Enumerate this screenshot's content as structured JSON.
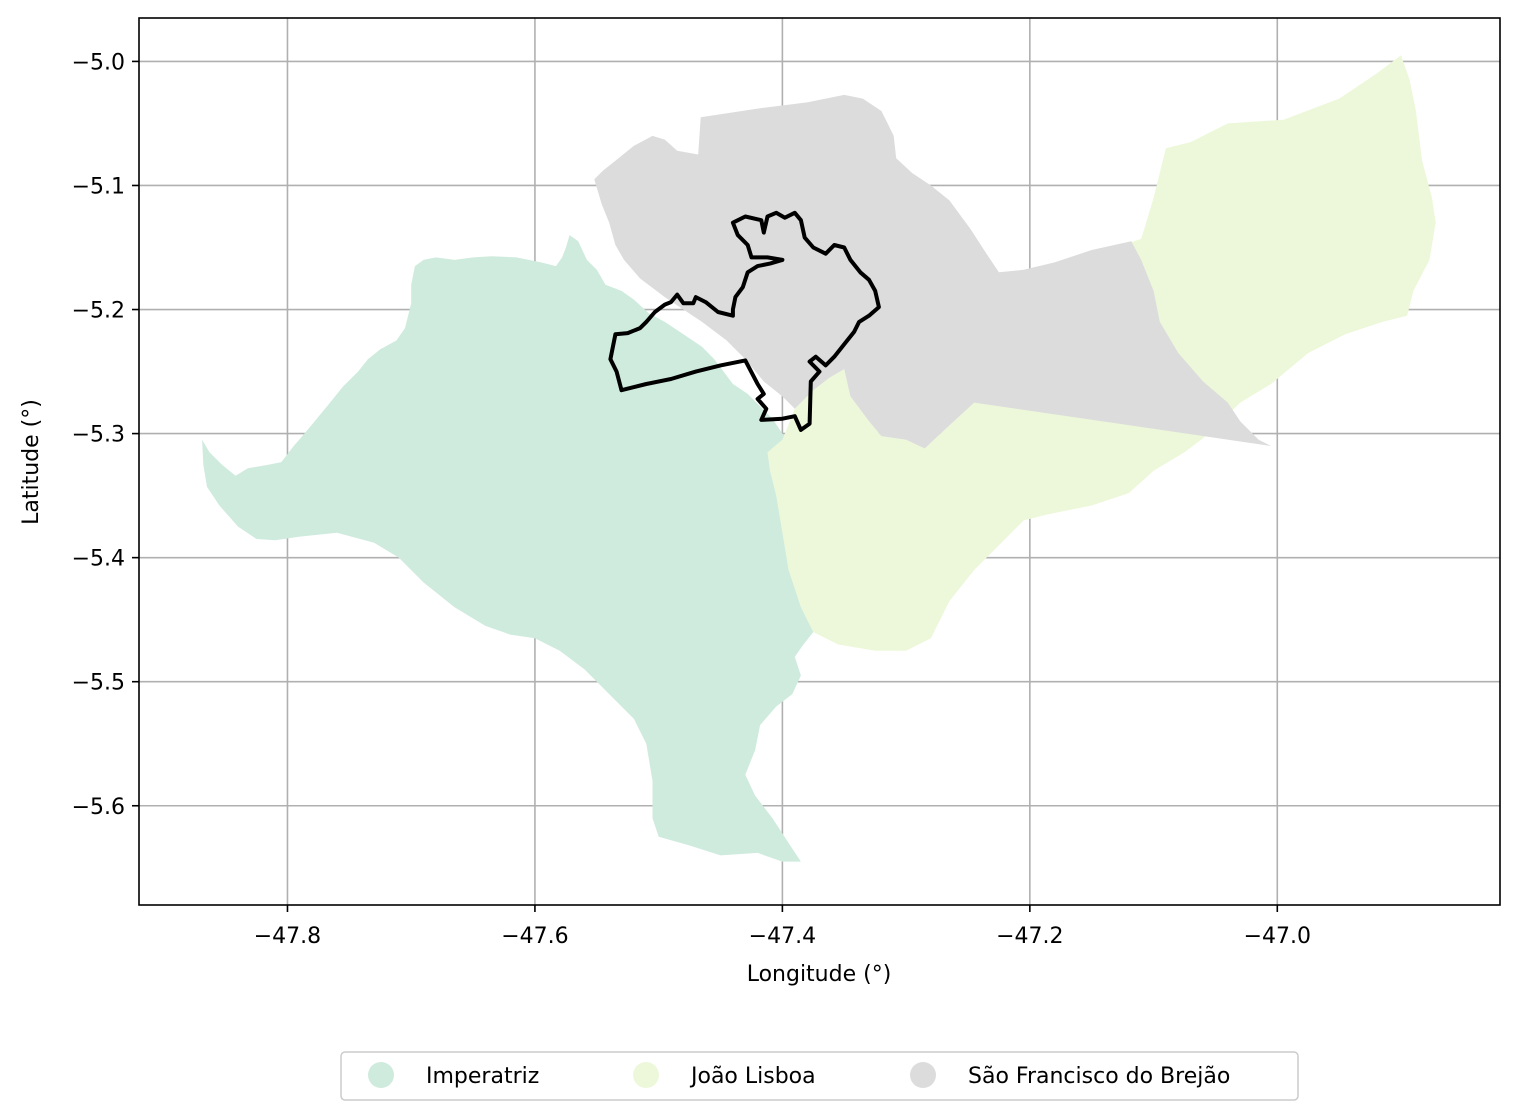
{
  "chart_data": {
    "type": "choropleth-map",
    "xlabel": "Longitude (°)",
    "ylabel": "Latitude (°)",
    "xlim": [
      -47.92,
      -46.82
    ],
    "ylim": [
      -5.68,
      -4.965
    ],
    "grid": true,
    "x_ticks": [
      -47.8,
      -47.6,
      -47.4,
      -47.2,
      -47.0
    ],
    "y_ticks": [
      -5.0,
      -5.1,
      -5.2,
      -5.3,
      -5.4,
      -5.5,
      -5.6
    ],
    "x_tick_labels": [
      "−47.8",
      "−47.6",
      "−47.4",
      "−47.2",
      "−47.0"
    ],
    "y_tick_labels": [
      "−5.0",
      "−5.1",
      "−5.2",
      "−5.3",
      "−5.4",
      "−5.5",
      "−5.6"
    ],
    "legend_position": "bottom-center",
    "regions": [
      {
        "name": "Imperatriz",
        "color": "#cfebde",
        "polygon": [
          [
            -47.869,
            -5.305
          ],
          [
            -47.863,
            -5.315
          ],
          [
            -47.853,
            -5.325
          ],
          [
            -47.842,
            -5.334
          ],
          [
            -47.832,
            -5.328
          ],
          [
            -47.815,
            -5.325
          ],
          [
            -47.805,
            -5.323
          ],
          [
            -47.795,
            -5.31
          ],
          [
            -47.788,
            -5.302
          ],
          [
            -47.778,
            -5.29
          ],
          [
            -47.768,
            -5.278
          ],
          [
            -47.755,
            -5.262
          ],
          [
            -47.743,
            -5.25
          ],
          [
            -47.735,
            -5.24
          ],
          [
            -47.725,
            -5.232
          ],
          [
            -47.712,
            -5.225
          ],
          [
            -47.705,
            -5.215
          ],
          [
            -47.7,
            -5.195
          ],
          [
            -47.7,
            -5.18
          ],
          [
            -47.697,
            -5.165
          ],
          [
            -47.69,
            -5.16
          ],
          [
            -47.68,
            -5.158
          ],
          [
            -47.665,
            -5.16
          ],
          [
            -47.65,
            -5.158
          ],
          [
            -47.635,
            -5.157
          ],
          [
            -47.615,
            -5.158
          ],
          [
            -47.595,
            -5.162
          ],
          [
            -47.583,
            -5.165
          ],
          [
            -47.578,
            -5.158
          ],
          [
            -47.575,
            -5.15
          ],
          [
            -47.572,
            -5.14
          ],
          [
            -47.565,
            -5.145
          ],
          [
            -47.558,
            -5.16
          ],
          [
            -47.55,
            -5.168
          ],
          [
            -47.543,
            -5.18
          ],
          [
            -47.53,
            -5.185
          ],
          [
            -47.52,
            -5.192
          ],
          [
            -47.508,
            -5.203
          ],
          [
            -47.495,
            -5.21
          ],
          [
            -47.48,
            -5.22
          ],
          [
            -47.465,
            -5.23
          ],
          [
            -47.455,
            -5.24
          ],
          [
            -47.44,
            -5.26
          ],
          [
            -47.428,
            -5.268
          ],
          [
            -47.418,
            -5.278
          ],
          [
            -47.408,
            -5.288
          ],
          [
            -47.4,
            -5.3
          ],
          [
            -47.388,
            -5.31
          ],
          [
            -47.38,
            -5.325
          ],
          [
            -47.36,
            -5.345
          ],
          [
            -47.34,
            -5.36
          ],
          [
            -47.332,
            -5.368
          ],
          [
            -47.34,
            -5.38
          ],
          [
            -47.345,
            -5.395
          ],
          [
            -47.355,
            -5.415
          ],
          [
            -47.365,
            -5.44
          ],
          [
            -47.375,
            -5.46
          ],
          [
            -47.383,
            -5.47
          ],
          [
            -47.39,
            -5.48
          ],
          [
            -47.385,
            -5.495
          ],
          [
            -47.392,
            -5.51
          ],
          [
            -47.405,
            -5.52
          ],
          [
            -47.418,
            -5.535
          ],
          [
            -47.422,
            -5.555
          ],
          [
            -47.43,
            -5.575
          ],
          [
            -47.422,
            -5.592
          ],
          [
            -47.408,
            -5.61
          ],
          [
            -47.395,
            -5.63
          ],
          [
            -47.385,
            -5.645
          ],
          [
            -47.4,
            -5.645
          ],
          [
            -47.42,
            -5.638
          ],
          [
            -47.45,
            -5.64
          ],
          [
            -47.475,
            -5.632
          ],
          [
            -47.5,
            -5.625
          ],
          [
            -47.505,
            -5.61
          ],
          [
            -47.505,
            -5.58
          ],
          [
            -47.51,
            -5.55
          ],
          [
            -47.52,
            -5.53
          ],
          [
            -47.54,
            -5.51
          ],
          [
            -47.56,
            -5.49
          ],
          [
            -47.58,
            -5.475
          ],
          [
            -47.6,
            -5.465
          ],
          [
            -47.62,
            -5.462
          ],
          [
            -47.64,
            -5.455
          ],
          [
            -47.665,
            -5.44
          ],
          [
            -47.69,
            -5.42
          ],
          [
            -47.71,
            -5.4
          ],
          [
            -47.73,
            -5.388
          ],
          [
            -47.76,
            -5.38
          ],
          [
            -47.79,
            -5.383
          ],
          [
            -47.81,
            -5.386
          ],
          [
            -47.825,
            -5.385
          ],
          [
            -47.84,
            -5.375
          ],
          [
            -47.855,
            -5.358
          ],
          [
            -47.865,
            -5.343
          ],
          [
            -47.868,
            -5.325
          ]
        ]
      },
      {
        "name": "João Lisboa",
        "color": "#edf8da",
        "polygon": [
          [
            -47.412,
            -5.315
          ],
          [
            -47.4,
            -5.305
          ],
          [
            -47.39,
            -5.28
          ],
          [
            -47.375,
            -5.265
          ],
          [
            -47.362,
            -5.255
          ],
          [
            -47.35,
            -5.248
          ],
          [
            -47.345,
            -5.27
          ],
          [
            -47.33,
            -5.29
          ],
          [
            -47.32,
            -5.302
          ],
          [
            -47.3,
            -5.305
          ],
          [
            -47.285,
            -5.312
          ],
          [
            -47.27,
            -5.298
          ],
          [
            -47.245,
            -5.275
          ],
          [
            -47.22,
            -5.24
          ],
          [
            -47.19,
            -5.2
          ],
          [
            -47.16,
            -5.172
          ],
          [
            -47.13,
            -5.15
          ],
          [
            -47.11,
            -5.143
          ],
          [
            -47.1,
            -5.11
          ],
          [
            -47.09,
            -5.07
          ],
          [
            -47.07,
            -5.065
          ],
          [
            -47.04,
            -5.05
          ],
          [
            -46.995,
            -5.047
          ],
          [
            -46.95,
            -5.03
          ],
          [
            -46.92,
            -5.01
          ],
          [
            -46.9,
            -4.995
          ],
          [
            -46.893,
            -5.015
          ],
          [
            -46.888,
            -5.04
          ],
          [
            -46.883,
            -5.08
          ],
          [
            -46.875,
            -5.11
          ],
          [
            -46.872,
            -5.13
          ],
          [
            -46.877,
            -5.16
          ],
          [
            -46.89,
            -5.185
          ],
          [
            -46.895,
            -5.205
          ],
          [
            -46.915,
            -5.21
          ],
          [
            -46.945,
            -5.22
          ],
          [
            -46.975,
            -5.235
          ],
          [
            -47.005,
            -5.26
          ],
          [
            -47.03,
            -5.275
          ],
          [
            -47.055,
            -5.3
          ],
          [
            -47.075,
            -5.315
          ],
          [
            -47.1,
            -5.33
          ],
          [
            -47.12,
            -5.348
          ],
          [
            -47.15,
            -5.358
          ],
          [
            -47.185,
            -5.365
          ],
          [
            -47.205,
            -5.37
          ],
          [
            -47.225,
            -5.39
          ],
          [
            -47.245,
            -5.41
          ],
          [
            -47.265,
            -5.435
          ],
          [
            -47.28,
            -5.465
          ],
          [
            -47.3,
            -5.475
          ],
          [
            -47.325,
            -5.475
          ],
          [
            -47.355,
            -5.47
          ],
          [
            -47.375,
            -5.46
          ],
          [
            -47.385,
            -5.44
          ],
          [
            -47.395,
            -5.41
          ],
          [
            -47.4,
            -5.38
          ],
          [
            -47.405,
            -5.35
          ],
          [
            -47.41,
            -5.33
          ]
        ]
      },
      {
        "name": "São Francisco do Brejão",
        "color": "#dcdcdc",
        "polygon": [
          [
            -47.552,
            -5.095
          ],
          [
            -47.545,
            -5.088
          ],
          [
            -47.535,
            -5.08
          ],
          [
            -47.52,
            -5.068
          ],
          [
            -47.505,
            -5.06
          ],
          [
            -47.495,
            -5.063
          ],
          [
            -47.485,
            -5.072
          ],
          [
            -47.468,
            -5.075
          ],
          [
            -47.466,
            -5.045
          ],
          [
            -47.42,
            -5.038
          ],
          [
            -47.38,
            -5.033
          ],
          [
            -47.35,
            -5.027
          ],
          [
            -47.335,
            -5.03
          ],
          [
            -47.32,
            -5.04
          ],
          [
            -47.315,
            -5.05
          ],
          [
            -47.31,
            -5.06
          ],
          [
            -47.308,
            -5.078
          ],
          [
            -47.295,
            -5.09
          ],
          [
            -47.28,
            -5.1
          ],
          [
            -47.265,
            -5.112
          ],
          [
            -47.248,
            -5.135
          ],
          [
            -47.235,
            -5.155
          ],
          [
            -47.225,
            -5.17
          ],
          [
            -47.205,
            -5.168
          ],
          [
            -47.18,
            -5.162
          ],
          [
            -47.15,
            -5.152
          ],
          [
            -47.118,
            -5.145
          ],
          [
            -47.11,
            -5.16
          ],
          [
            -47.1,
            -5.185
          ],
          [
            -47.095,
            -5.21
          ],
          [
            -47.08,
            -5.235
          ],
          [
            -47.06,
            -5.258
          ],
          [
            -47.04,
            -5.275
          ],
          [
            -47.03,
            -5.29
          ],
          [
            -47.015,
            -5.305
          ],
          [
            -47.005,
            -5.31
          ],
          [
            -47.245,
            -5.275
          ],
          [
            -47.27,
            -5.298
          ],
          [
            -47.285,
            -5.312
          ],
          [
            -47.3,
            -5.305
          ],
          [
            -47.32,
            -5.302
          ],
          [
            -47.33,
            -5.29
          ],
          [
            -47.345,
            -5.27
          ],
          [
            -47.35,
            -5.248
          ],
          [
            -47.362,
            -5.255
          ],
          [
            -47.375,
            -5.265
          ],
          [
            -47.39,
            -5.28
          ],
          [
            -47.4,
            -5.27
          ],
          [
            -47.415,
            -5.258
          ],
          [
            -47.43,
            -5.24
          ],
          [
            -47.445,
            -5.225
          ],
          [
            -47.465,
            -5.21
          ],
          [
            -47.48,
            -5.2
          ],
          [
            -47.495,
            -5.19
          ],
          [
            -47.515,
            -5.175
          ],
          [
            -47.528,
            -5.16
          ],
          [
            -47.535,
            -5.148
          ],
          [
            -47.54,
            -5.13
          ],
          [
            -47.546,
            -5.115
          ]
        ]
      }
    ],
    "outline": {
      "color": "#000000",
      "polygon": [
        [
          -47.44,
          -5.205
        ],
        [
          -47.452,
          -5.202
        ],
        [
          -47.462,
          -5.194
        ],
        [
          -47.47,
          -5.19
        ],
        [
          -47.472,
          -5.195
        ],
        [
          -47.48,
          -5.195
        ],
        [
          -47.485,
          -5.188
        ],
        [
          -47.49,
          -5.194
        ],
        [
          -47.495,
          -5.196
        ],
        [
          -47.503,
          -5.202
        ],
        [
          -47.51,
          -5.21
        ],
        [
          -47.515,
          -5.215
        ],
        [
          -47.525,
          -5.219
        ],
        [
          -47.535,
          -5.22
        ],
        [
          -47.539,
          -5.24
        ],
        [
          -47.534,
          -5.25
        ],
        [
          -47.53,
          -5.265
        ],
        [
          -47.51,
          -5.26
        ],
        [
          -47.49,
          -5.256
        ],
        [
          -47.47,
          -5.25
        ],
        [
          -47.45,
          -5.245
        ],
        [
          -47.43,
          -5.241
        ],
        [
          -47.42,
          -5.26
        ],
        [
          -47.415,
          -5.268
        ],
        [
          -47.42,
          -5.272
        ],
        [
          -47.413,
          -5.28
        ],
        [
          -47.417,
          -5.289
        ],
        [
          -47.4,
          -5.288
        ],
        [
          -47.39,
          -5.286
        ],
        [
          -47.385,
          -5.297
        ],
        [
          -47.378,
          -5.292
        ],
        [
          -47.377,
          -5.258
        ],
        [
          -47.37,
          -5.25
        ],
        [
          -47.378,
          -5.242
        ],
        [
          -47.373,
          -5.238
        ],
        [
          -47.365,
          -5.245
        ],
        [
          -47.358,
          -5.238
        ],
        [
          -47.35,
          -5.228
        ],
        [
          -47.342,
          -5.218
        ],
        [
          -47.338,
          -5.21
        ],
        [
          -47.33,
          -5.205
        ],
        [
          -47.322,
          -5.198
        ],
        [
          -47.325,
          -5.185
        ],
        [
          -47.33,
          -5.176
        ],
        [
          -47.337,
          -5.17
        ],
        [
          -47.345,
          -5.16
        ],
        [
          -47.35,
          -5.15
        ],
        [
          -47.358,
          -5.148
        ],
        [
          -47.365,
          -5.155
        ],
        [
          -47.375,
          -5.15
        ],
        [
          -47.382,
          -5.142
        ],
        [
          -47.385,
          -5.128
        ],
        [
          -47.39,
          -5.122
        ],
        [
          -47.398,
          -5.126
        ],
        [
          -47.405,
          -5.122
        ],
        [
          -47.412,
          -5.125
        ],
        [
          -47.415,
          -5.138
        ],
        [
          -47.417,
          -5.128
        ],
        [
          -47.43,
          -5.125
        ],
        [
          -47.44,
          -5.13
        ],
        [
          -47.436,
          -5.14
        ],
        [
          -47.428,
          -5.148
        ],
        [
          -47.425,
          -5.158
        ],
        [
          -47.412,
          -5.158
        ],
        [
          -47.4,
          -5.16
        ],
        [
          -47.41,
          -5.163
        ],
        [
          -47.42,
          -5.165
        ],
        [
          -47.428,
          -5.17
        ],
        [
          -47.432,
          -5.182
        ],
        [
          -47.438,
          -5.19
        ],
        [
          -47.44,
          -5.2
        ]
      ]
    }
  }
}
